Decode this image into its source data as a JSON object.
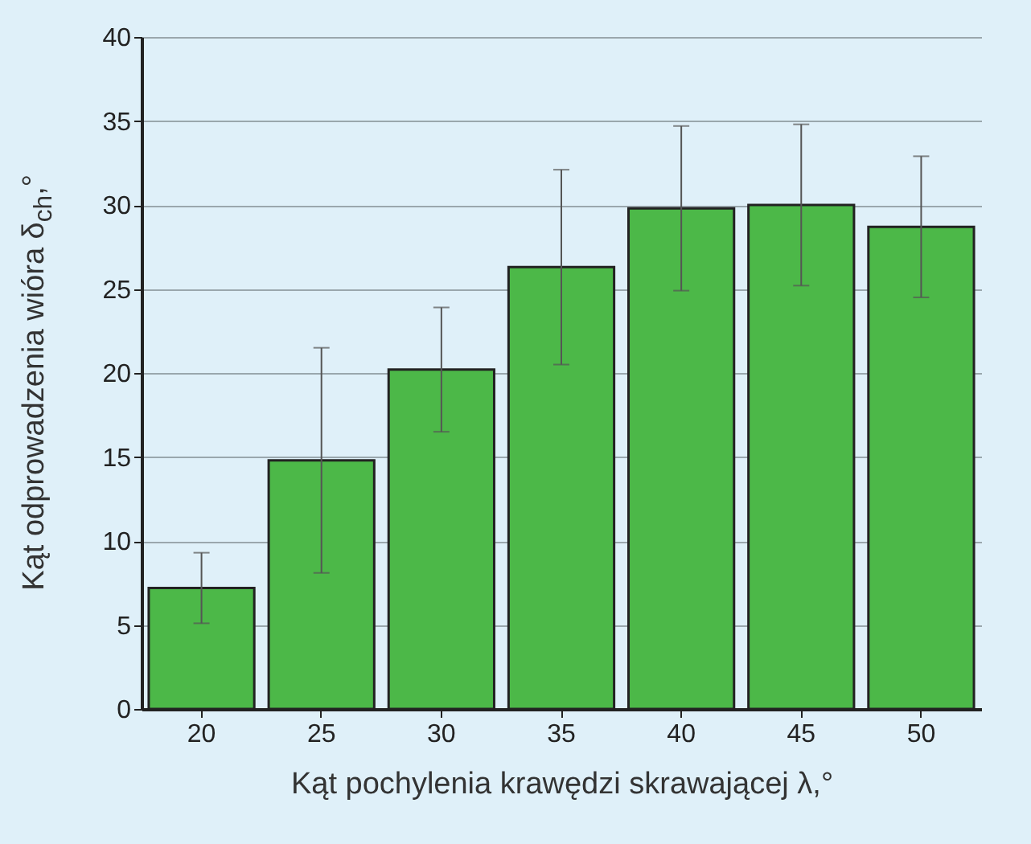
{
  "chart_data": {
    "type": "bar",
    "xlabel": "Kąt pochylenia krawędzi skrawającej λ,°",
    "ylabel": "Kąt odprowadzenia wióra δ$_{ch}$,°",
    "categories": [
      "20",
      "25",
      "30",
      "35",
      "40",
      "45",
      "50"
    ],
    "values": [
      7.2,
      14.8,
      20.2,
      26.3,
      29.8,
      30.0,
      28.7
    ],
    "errors": [
      2.1,
      6.7,
      3.7,
      5.8,
      4.9,
      4.8,
      4.2
    ],
    "color": "#4cb848",
    "ylim": [
      0,
      40
    ],
    "yticks": [
      0,
      5,
      10,
      15,
      20,
      25,
      30,
      35,
      40
    ],
    "grid": "y"
  }
}
